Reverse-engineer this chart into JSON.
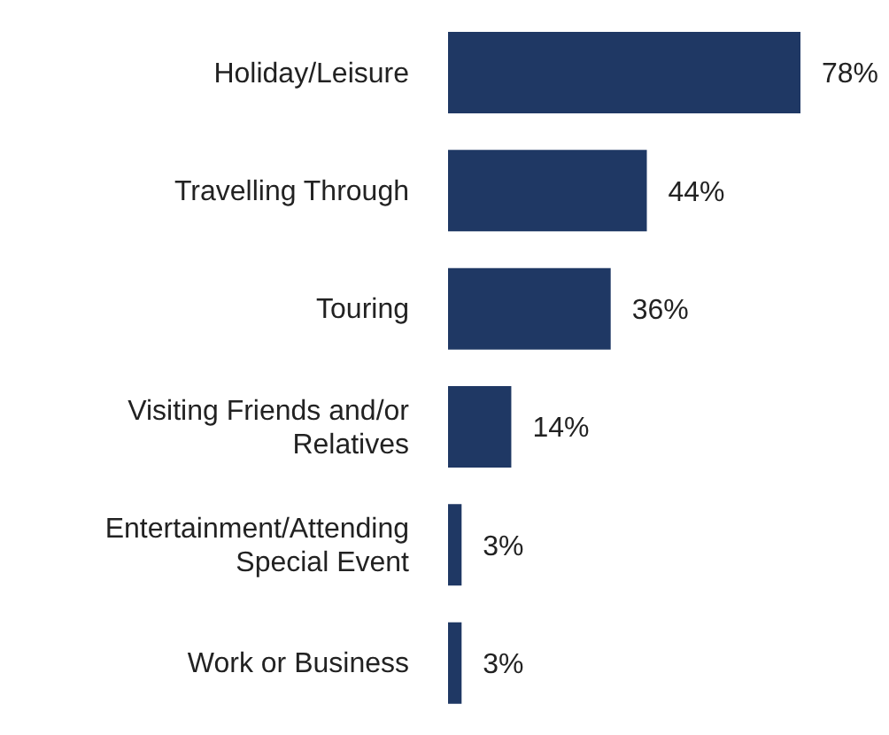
{
  "chart_data": {
    "type": "bar",
    "orientation": "horizontal",
    "categories": [
      "Holiday/Leisure",
      "Travelling Through",
      "Touring",
      "Visiting Friends and/or Relatives",
      "Entertainment/Attending Special Event",
      "Work or Business"
    ],
    "values": [
      78,
      44,
      36,
      14,
      3,
      3
    ],
    "value_labels": [
      "78%",
      "44%",
      "36%",
      "14%",
      "3%",
      "3%"
    ],
    "color": "#1f3864"
  }
}
